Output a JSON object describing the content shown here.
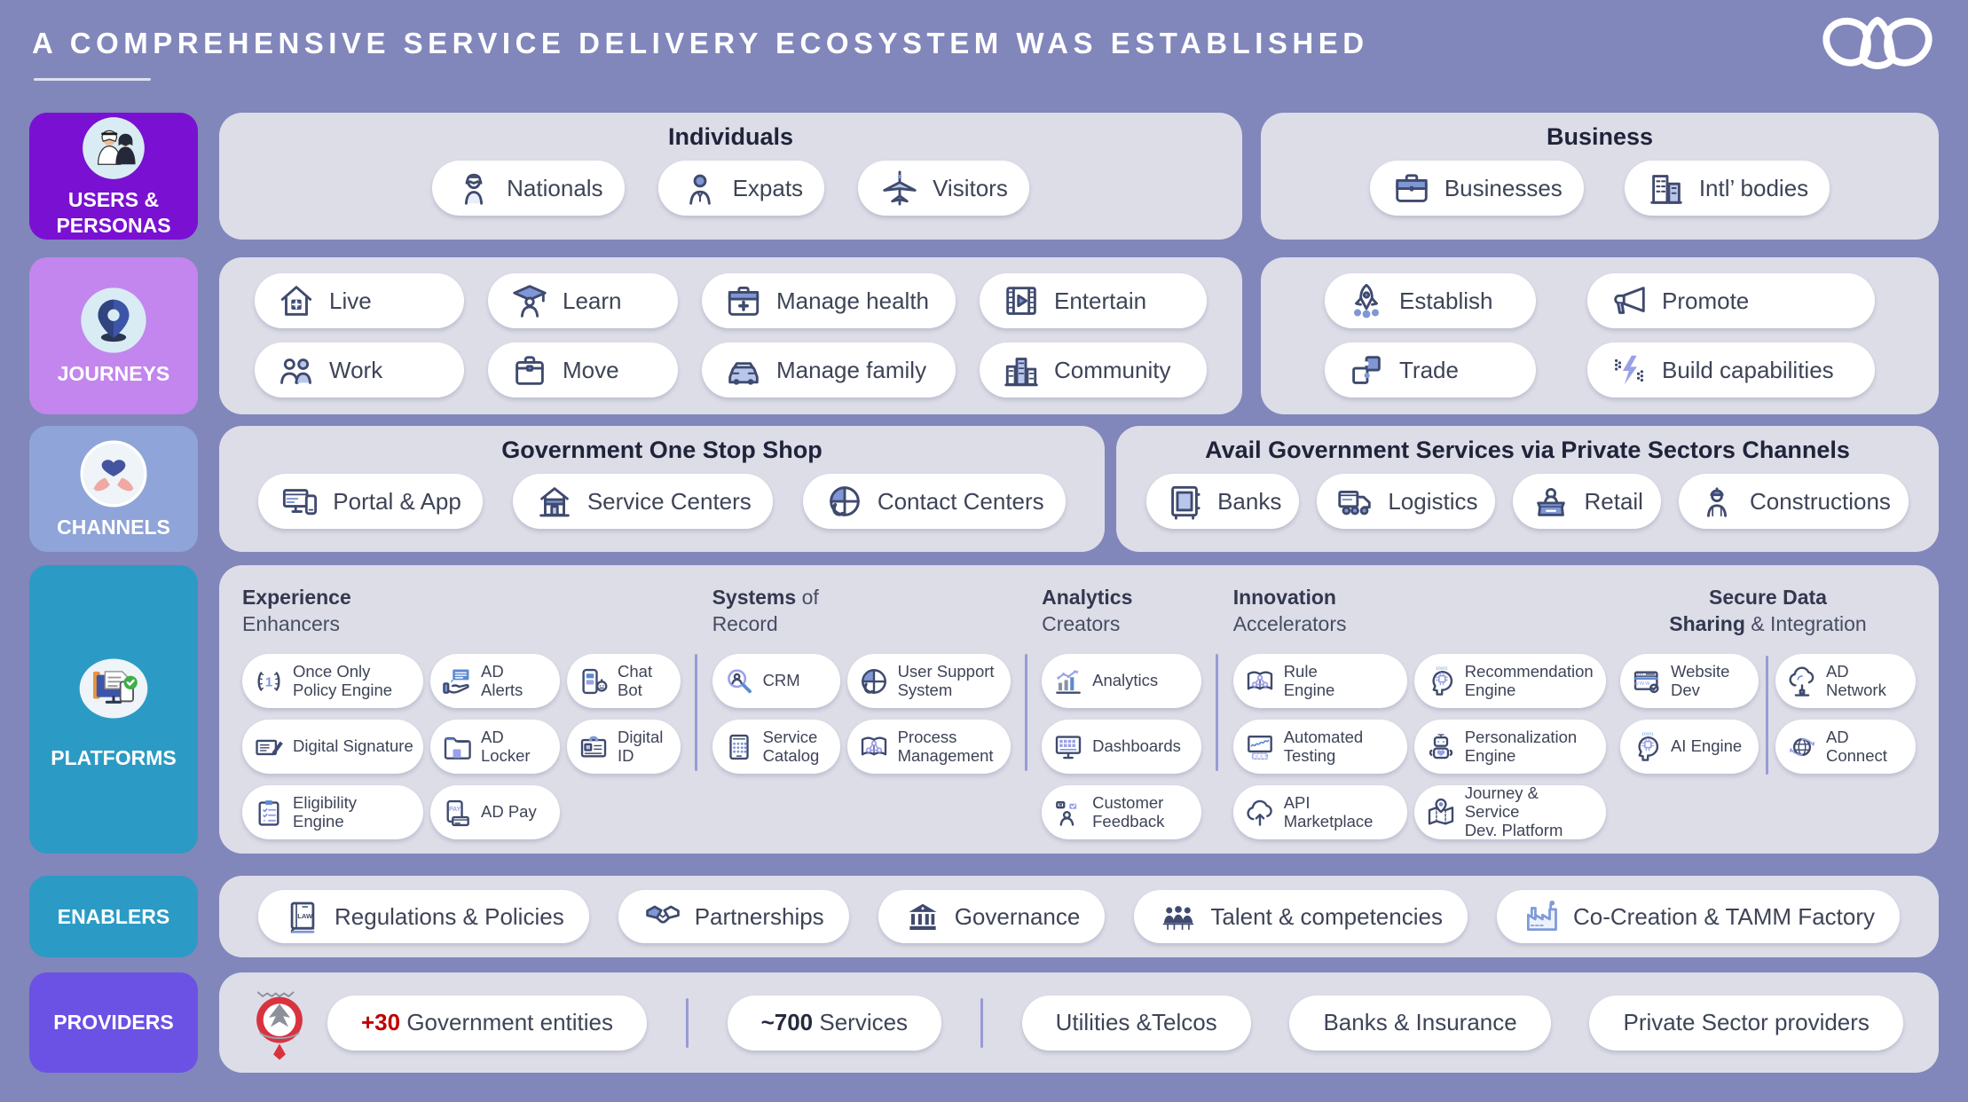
{
  "title": {
    "text": "A COMPREHENSIVE SERVICE DELIVERY ECOSYSTEM WAS ESTABLISHED"
  },
  "logo": {
    "icon": "tamm-logo-icon"
  },
  "palette": {
    "bg": "#8186bb",
    "panel": "#dcdde7",
    "pill": "#ffffff",
    "ink": "#3e4457",
    "navy": "#3f4a6e",
    "divider": "#979cd4",
    "red": "#c00000"
  },
  "sidebar": [
    {
      "label": "USERS &\nPERSONAS",
      "color": "#7a10d2",
      "icon": "personas-icon"
    },
    {
      "label": "JOURNEYS",
      "color": "#c286ee",
      "icon": "journeys-pin-icon"
    },
    {
      "label": "CHANNELS",
      "color": "#8fa4d8",
      "icon": "hands-heart-icon"
    },
    {
      "label": "PLATFORMS",
      "color": "#2b9bc5",
      "icon": "devices-check-icon"
    },
    {
      "label": "ENABLERS",
      "color": "#2b9bc5"
    },
    {
      "label": "PROVIDERS",
      "color": "#6b51e4"
    }
  ],
  "users_row": {
    "individuals": {
      "title": "Individuals",
      "pills": [
        {
          "label": "Nationals",
          "icon": "national-icon"
        },
        {
          "label": "Expats",
          "icon": "expat-icon"
        },
        {
          "label": "Visitors",
          "icon": "plane-icon"
        }
      ]
    },
    "business": {
      "title": "Business",
      "pills": [
        {
          "label": "Businesses",
          "icon": "briefcase-icon"
        },
        {
          "label": "Intl’ bodies",
          "icon": "buildings-icon"
        }
      ]
    }
  },
  "journeys_row": {
    "individual_pills": [
      {
        "label": "Live",
        "icon": "house-icon"
      },
      {
        "label": "Learn",
        "icon": "graduate-icon"
      },
      {
        "label": "Manage health",
        "icon": "health-kit-icon"
      },
      {
        "label": "Entertain",
        "icon": "film-icon"
      },
      {
        "label": "Work",
        "icon": "workers-icon"
      },
      {
        "label": "Move",
        "icon": "move-box-icon"
      },
      {
        "label": "Manage family",
        "icon": "car-icon"
      },
      {
        "label": "Community",
        "icon": "community-icon"
      }
    ],
    "business_pills": [
      {
        "label": "Establish",
        "icon": "rocket-icon"
      },
      {
        "label": "Promote",
        "icon": "megaphone-icon"
      },
      {
        "label": "Trade",
        "icon": "puzzle-icon"
      },
      {
        "label": "Build capabilities",
        "icon": "capabilities-icon"
      }
    ]
  },
  "channels_row": {
    "gov": {
      "title": "Government One Stop Shop",
      "pills": [
        {
          "label": "Portal & App",
          "icon": "portal-icon"
        },
        {
          "label": "Service Centers",
          "icon": "service-center-icon"
        },
        {
          "label": "Contact Centers",
          "icon": "contact-center-icon"
        }
      ]
    },
    "private": {
      "title": "Avail Government Services via Private Sectors Channels",
      "pills": [
        {
          "label": "Banks",
          "icon": "bank-safe-icon"
        },
        {
          "label": "Logistics",
          "icon": "logistics-icon"
        },
        {
          "label": "Retail",
          "icon": "retail-icon"
        },
        {
          "label": "Constructions",
          "icon": "construction-icon"
        }
      ]
    }
  },
  "platforms": {
    "s1": {
      "h1b": "Experience",
      "h1r": "",
      "h2b": "",
      "h2r": "Enhancers",
      "col1": [
        {
          "label": "Once Only\nPolicy Engine",
          "icon": "once-only-icon"
        },
        {
          "label": "Digital Signature",
          "icon": "digital-signature-icon"
        },
        {
          "label": "Eligibility\nEngine",
          "icon": "eligibility-icon"
        }
      ],
      "col2": [
        {
          "label": "AD\nAlerts",
          "icon": "ad-alerts-icon"
        },
        {
          "label": "AD\nLocker",
          "icon": "ad-locker-icon"
        },
        {
          "label": "AD Pay",
          "icon": "ad-pay-icon"
        }
      ],
      "col3": [
        {
          "label": "Chat\nBot",
          "icon": "chat-bot-icon"
        },
        {
          "label": "Digital\nID",
          "icon": "digital-id-icon"
        }
      ]
    },
    "s2": {
      "h1b": "Systems",
      "h1r": " of",
      "h2b": "",
      "h2r": "Record",
      "col1": [
        {
          "label": "CRM",
          "icon": "crm-icon"
        },
        {
          "label": "Service\nCatalog",
          "icon": "service-catalog-icon"
        }
      ],
      "col2": [
        {
          "label": "User Support\nSystem",
          "icon": "user-support-icon"
        },
        {
          "label": "Process\nManagement",
          "icon": "process-icon"
        }
      ]
    },
    "s3": {
      "h1b": "Analytics",
      "h1r": "",
      "h2b": "",
      "h2r": "Creators",
      "col1": [
        {
          "label": "Analytics",
          "icon": "analytics-icon"
        },
        {
          "label": "Dashboards",
          "icon": "dashboards-icon"
        },
        {
          "label": "Customer\nFeedback",
          "icon": "feedback-icon"
        }
      ]
    },
    "s4": {
      "h1b": "Innovation",
      "h1r": "",
      "h2b": "",
      "h2r": "Accelerators",
      "col1": [
        {
          "label": "Rule\nEngine",
          "icon": "rule-engine-icon"
        },
        {
          "label": "Automated\nTesting",
          "icon": "automated-testing-icon"
        },
        {
          "label": "API Marketplace",
          "icon": "api-marketplace-icon"
        }
      ],
      "col2": [
        {
          "label": "Recommendation\nEngine",
          "icon": "recommendation-icon"
        },
        {
          "label": "Personalization\nEngine",
          "icon": "personalization-icon"
        },
        {
          "label": "Journey & Service\nDev. Platform",
          "icon": "journey-platform-icon"
        }
      ]
    },
    "s5": {
      "h1b": "Secure Data",
      "h1r": "",
      "h2b": "Sharing",
      "h2r": " & Integration",
      "col1": [
        {
          "label": "Website\nDev",
          "icon": "website-dev-icon"
        },
        {
          "label": "AI Engine",
          "icon": "ai-engine-icon"
        }
      ],
      "col2": [
        {
          "label": "AD Network",
          "icon": "ad-network-icon"
        },
        {
          "label": "AD\nConnect",
          "icon": "ad-connect-icon"
        }
      ]
    }
  },
  "enablers": {
    "pills": [
      {
        "label": "Regulations & Policies",
        "icon": "law-icon"
      },
      {
        "label": "Partnerships",
        "icon": "handshake-icon"
      },
      {
        "label": "Governance",
        "icon": "governance-icon"
      },
      {
        "label": "Talent & competencies",
        "icon": "talent-icon"
      },
      {
        "label": "Co-Creation & TAMM Factory",
        "icon": "factory-icon"
      }
    ]
  },
  "providers": {
    "emblem_icon": "abu-dhabi-emblem-icon",
    "pills": [
      {
        "name": "government-entities",
        "accent": "+30",
        "accent_color": "#c00000",
        "label": " Government entities",
        "divider_after": true
      },
      {
        "name": "services-count",
        "accent": "~700",
        "label": " Services",
        "divider_after": true
      },
      {
        "label": "Utilities &Telcos"
      },
      {
        "label": "Banks & Insurance"
      },
      {
        "label": "Private Sector providers"
      }
    ]
  }
}
